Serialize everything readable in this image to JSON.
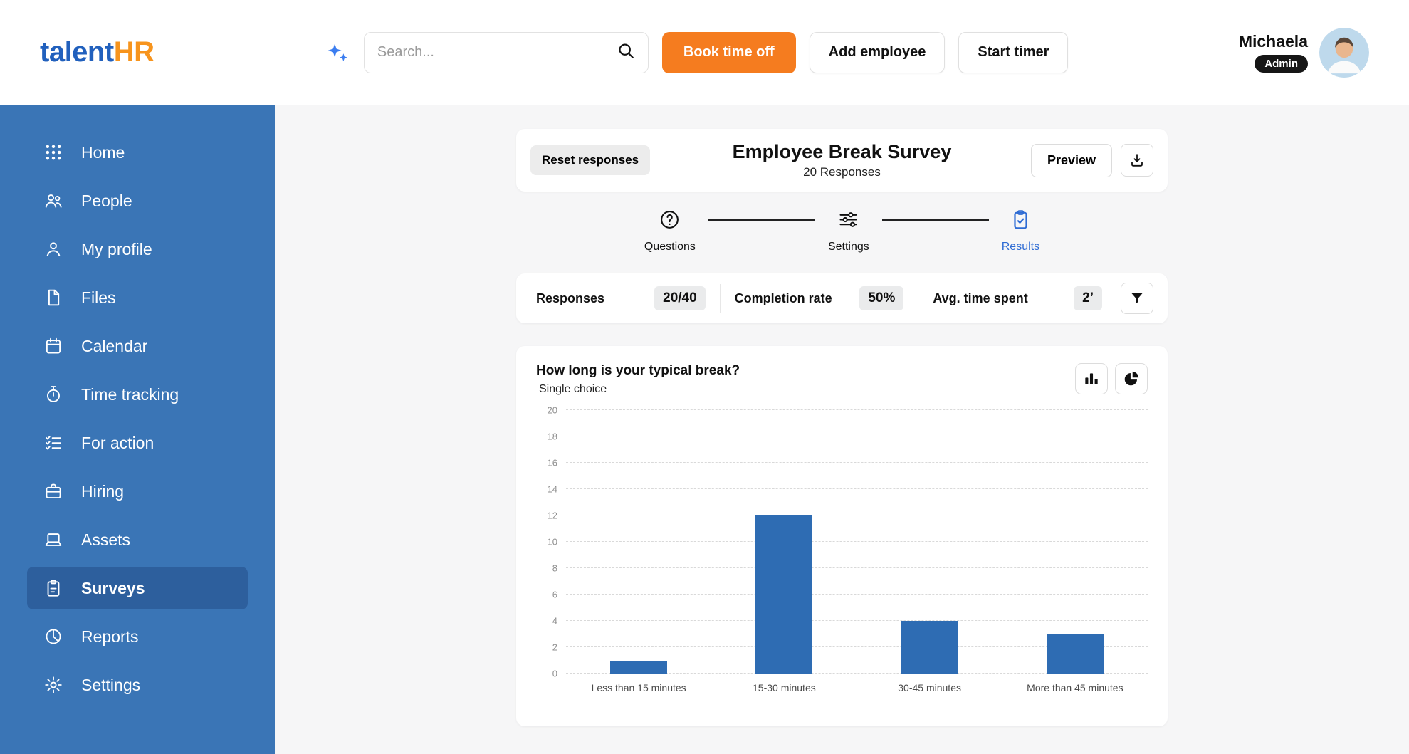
{
  "colors": {
    "accent_orange": "#f57c1f",
    "brand_blue": "#2160bd",
    "brand_orange": "#f7941d",
    "sidebar_blue": "#3a75b6",
    "sidebar_active_blue": "#2d5f9d",
    "results_blue": "#2f6cd4",
    "bar_blue": "#2e6cb3"
  },
  "brand": {
    "part1": "talent",
    "part2": "HR"
  },
  "topbar": {
    "search_placeholder": "Search...",
    "book_time_off": "Book time off",
    "add_employee": "Add employee",
    "start_timer": "Start timer",
    "user_name": "Michaela",
    "user_role": "Admin"
  },
  "sidebar": {
    "items": [
      {
        "label": "Home",
        "icon": "grid-icon"
      },
      {
        "label": "People",
        "icon": "people-icon"
      },
      {
        "label": "My profile",
        "icon": "user-icon"
      },
      {
        "label": "Files",
        "icon": "file-icon"
      },
      {
        "label": "Calendar",
        "icon": "calendar-icon"
      },
      {
        "label": "Time tracking",
        "icon": "stopwatch-icon"
      },
      {
        "label": "For action",
        "icon": "checklist-icon"
      },
      {
        "label": "Hiring",
        "icon": "briefcase-icon"
      },
      {
        "label": "Assets",
        "icon": "laptop-icon"
      },
      {
        "label": "Surveys",
        "icon": "clipboard-icon",
        "active": true
      },
      {
        "label": "Reports",
        "icon": "pie-icon"
      },
      {
        "label": "Settings",
        "icon": "gear-icon"
      }
    ]
  },
  "survey_header": {
    "reset_button": "Reset responses",
    "title": "Employee Break Survey",
    "subtitle": "20 Responses",
    "preview_button": "Preview"
  },
  "stepper": {
    "steps": [
      {
        "label": "Questions",
        "active": false
      },
      {
        "label": "Settings",
        "active": false
      },
      {
        "label": "Results",
        "active": true
      }
    ]
  },
  "stats": {
    "responses_label": "Responses",
    "responses_value": "20/40",
    "completion_label": "Completion rate",
    "completion_value": "50%",
    "avg_time_label": "Avg. time spent",
    "avg_time_value": "2’"
  },
  "chart_data": {
    "type": "bar",
    "title": "How long is your typical break?",
    "subtitle": "Single choice",
    "categories": [
      "Less than 15 minutes",
      "15-30 minutes",
      "30-45 minutes",
      "More than 45 minutes"
    ],
    "values": [
      1,
      12,
      4,
      3
    ],
    "ylim": [
      0,
      20
    ],
    "ytick_step": 2,
    "ylabel": "",
    "xlabel": "",
    "grid": "dashed-horizontal",
    "legend": "none",
    "bar_color": "#2e6cb3"
  }
}
